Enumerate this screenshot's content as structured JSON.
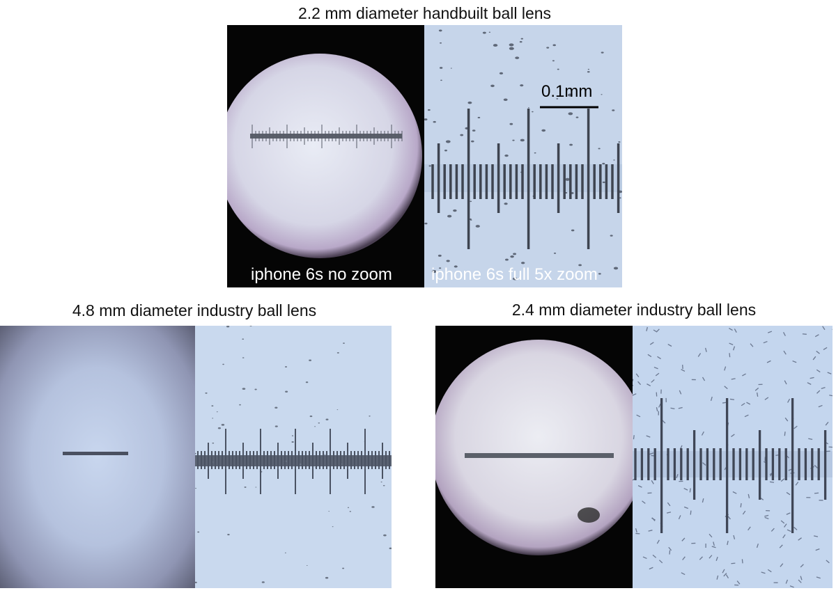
{
  "figure": {
    "groups": [
      {
        "title": "2.2 mm diameter handbuilt ball lens",
        "left_label": "iphone 6s no zoom",
        "right_label": "iphone 6s full 5x zoom",
        "scale_bar": "0.1mm"
      },
      {
        "title": "4.8 mm diameter industry ball lens"
      },
      {
        "title": "2.4 mm diameter industry ball lens"
      }
    ]
  }
}
